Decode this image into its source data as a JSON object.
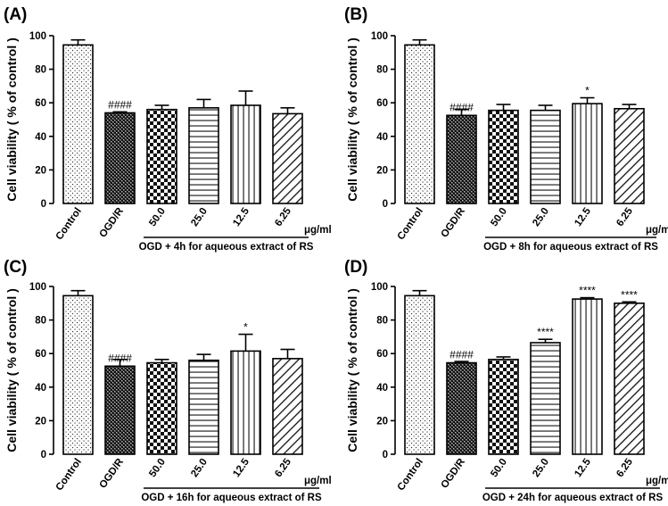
{
  "chart_data": [
    {
      "type": "bar",
      "panel": "(A)",
      "ylabel": "Cell viability ( % of control )",
      "ylim": [
        0,
        100
      ],
      "yticks": [
        "0",
        "20",
        "40",
        "60",
        "80",
        "100"
      ],
      "categories": [
        "Control",
        "OGD/R",
        "50.0",
        "25.0",
        "12.5",
        "6.25"
      ],
      "unit_label": "μg/ml",
      "group_label": "OGD + 4h for aqueous extract of RS",
      "values": [
        94.5,
        54.0,
        56.0,
        57.0,
        58.5,
        53.5
      ],
      "errors": [
        3.0,
        0.6,
        2.5,
        5.0,
        8.5,
        3.5
      ],
      "significance": [
        "",
        "####",
        "",
        "",
        "",
        ""
      ]
    },
    {
      "type": "bar",
      "panel": "(B)",
      "ylabel": "Cell viability ( % of control )",
      "ylim": [
        0,
        100
      ],
      "yticks": [
        "0",
        "20",
        "40",
        "60",
        "80",
        "100"
      ],
      "categories": [
        "Control",
        "OGD/R",
        "50.0",
        "25.0",
        "12.5",
        "6.25"
      ],
      "unit_label": "μg/ml",
      "group_label": "OGD + 8h for aqueous extract of RS",
      "values": [
        94.5,
        52.5,
        55.5,
        55.5,
        59.5,
        56.5
      ],
      "errors": [
        3.0,
        3.5,
        3.5,
        3.0,
        3.5,
        2.5
      ],
      "significance": [
        "",
        "####",
        "",
        "",
        "*",
        ""
      ]
    },
    {
      "type": "bar",
      "panel": "(C)",
      "ylabel": "Cell viability ( % of control )",
      "ylim": [
        0,
        100
      ],
      "yticks": [
        "0",
        "20",
        "40",
        "60",
        "80",
        "100"
      ],
      "categories": [
        "Control",
        "OGD/R",
        "50.0",
        "25.0",
        "12.5",
        "6.25"
      ],
      "unit_label": "μg/ml",
      "group_label": "OGD + 16h for aqueous extract of RS",
      "values": [
        94.5,
        52.5,
        54.5,
        56.0,
        61.5,
        57.0
      ],
      "errors": [
        3.0,
        4.0,
        2.0,
        3.5,
        10.0,
        5.5
      ],
      "significance": [
        "",
        "####",
        "",
        "",
        "*",
        ""
      ]
    },
    {
      "type": "bar",
      "panel": "(D)",
      "ylabel": "Cell viability ( % of control )",
      "ylim": [
        0,
        100
      ],
      "yticks": [
        "0",
        "20",
        "40",
        "60",
        "80",
        "100"
      ],
      "categories": [
        "Control",
        "OGD/R",
        "50.0",
        "25.0",
        "12.5",
        "6.25"
      ],
      "unit_label": "μg/ml",
      "group_label": "OGD + 24h for aqueous extract of RS",
      "values": [
        94.5,
        54.5,
        56.5,
        66.5,
        92.5,
        90.0
      ],
      "errors": [
        3.0,
        0.8,
        1.5,
        2.0,
        0.8,
        0.8
      ],
      "significance": [
        "",
        "####",
        "",
        "****",
        "****",
        "****"
      ]
    }
  ],
  "colors": {
    "background": "#ffffff",
    "bar_fill": "#ffffff",
    "ink": "#000000",
    "checker": "#1a1a1a"
  }
}
